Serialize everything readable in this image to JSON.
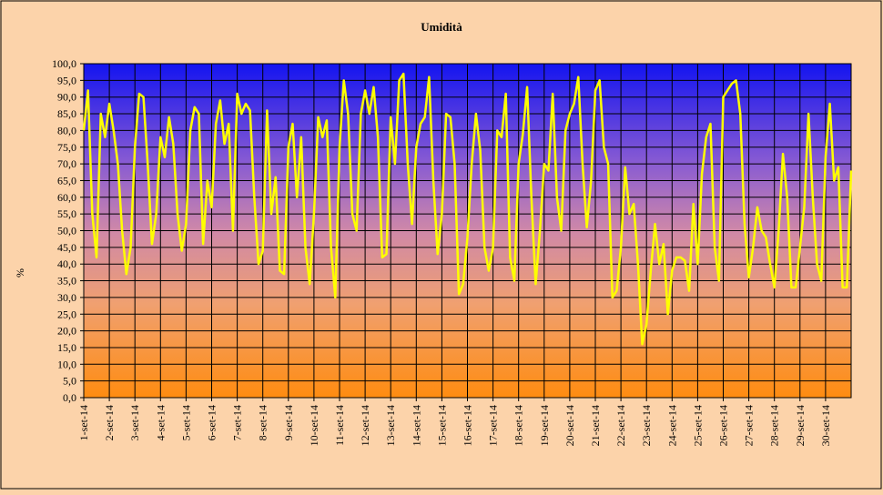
{
  "chart_data": {
    "type": "line",
    "title": "Umidità",
    "y_label": "%",
    "categories": [
      "1-set-14",
      null,
      null,
      null,
      null,
      null,
      "2-set-14",
      null,
      null,
      null,
      null,
      null,
      "3-set-14",
      null,
      null,
      null,
      null,
      null,
      "4-set-14",
      null,
      null,
      null,
      null,
      null,
      "5-set-14",
      null,
      null,
      null,
      null,
      null,
      "6-set-14",
      null,
      null,
      null,
      null,
      null,
      "7-set-14",
      null,
      null,
      null,
      null,
      null,
      "8-set-14",
      null,
      null,
      null,
      null,
      null,
      "9-set-14",
      null,
      null,
      null,
      null,
      null,
      "10-set-14",
      null,
      null,
      null,
      null,
      null,
      "11-set-14",
      null,
      null,
      null,
      null,
      null,
      "12-set-14",
      null,
      null,
      null,
      null,
      null,
      "13-set-14",
      null,
      null,
      null,
      null,
      null,
      "14-set-14",
      null,
      null,
      null,
      null,
      null,
      "15-set-14",
      null,
      null,
      null,
      null,
      null,
      "16-set-14",
      null,
      null,
      null,
      null,
      null,
      "17-set-14",
      null,
      null,
      null,
      null,
      null,
      "18-set-14",
      null,
      null,
      null,
      null,
      null,
      "19-set-14",
      null,
      null,
      null,
      null,
      null,
      "20-set-14",
      null,
      null,
      null,
      null,
      null,
      "21-set-14",
      null,
      null,
      null,
      null,
      null,
      "22-set-14",
      null,
      null,
      null,
      null,
      null,
      "23-set-14",
      null,
      null,
      null,
      null,
      null,
      "24-set-14",
      null,
      null,
      null,
      null,
      null,
      "25-set-14",
      null,
      null,
      null,
      null,
      null,
      "26-set-14",
      null,
      null,
      null,
      null,
      null,
      "27-set-14",
      null,
      null,
      null,
      null,
      null,
      "28-set-14",
      null,
      null,
      null,
      null,
      null,
      "29-set-14",
      null,
      null,
      null,
      null,
      null,
      "30-set-14",
      null,
      null,
      null,
      null,
      null,
      null
    ],
    "series": [
      {
        "name": "Umidità",
        "color": "#ffff00",
        "values": [
          80,
          92,
          55,
          42,
          85,
          78,
          88,
          80,
          70,
          50,
          37,
          45,
          75,
          91,
          90,
          70,
          46,
          55,
          78,
          72,
          84,
          76,
          55,
          44,
          52,
          80,
          87,
          85,
          46,
          65,
          57,
          82,
          89,
          76,
          82,
          50,
          91,
          85,
          88,
          86,
          60,
          40,
          44,
          86,
          55,
          66,
          38,
          37,
          75,
          82,
          60,
          78,
          45,
          34,
          55,
          84,
          78,
          83,
          45,
          30,
          75,
          95,
          85,
          55,
          50,
          85,
          92,
          85,
          93,
          78,
          42,
          43,
          84,
          70,
          95,
          97,
          70,
          52,
          75,
          82,
          84,
          96,
          65,
          43,
          55,
          85,
          84,
          70,
          31,
          34,
          48,
          70,
          85,
          74,
          45,
          38,
          45,
          80,
          78,
          91,
          42,
          35,
          70,
          79,
          93,
          60,
          34,
          50,
          70,
          68,
          91,
          60,
          50,
          80,
          85,
          88,
          96,
          70,
          51,
          65,
          92,
          95,
          75,
          70,
          30,
          32,
          45,
          69,
          55,
          58,
          40,
          16,
          22,
          38,
          52,
          40,
          46,
          25,
          38,
          42,
          42,
          41,
          32,
          58,
          40,
          67,
          78,
          82,
          45,
          35,
          90,
          92,
          94,
          95,
          85,
          52,
          36,
          45,
          57,
          50,
          48,
          40,
          33,
          50,
          73,
          60,
          33,
          33,
          45,
          57,
          85,
          60,
          40,
          35,
          72,
          88,
          65,
          69,
          33,
          33,
          68
        ]
      }
    ],
    "ylim": [
      0,
      100
    ],
    "yticks": [
      {
        "value": 0,
        "label": "0,0"
      },
      {
        "value": 5,
        "label": "5,0"
      },
      {
        "value": 10,
        "label": "10,0"
      },
      {
        "value": 15,
        "label": "15,0"
      },
      {
        "value": 20,
        "label": "20,0"
      },
      {
        "value": 25,
        "label": "25,0"
      },
      {
        "value": 30,
        "label": "30,0"
      },
      {
        "value": 35,
        "label": "35,0"
      },
      {
        "value": 40,
        "label": "40,0"
      },
      {
        "value": 45,
        "label": "45,0"
      },
      {
        "value": 50,
        "label": "50,0"
      },
      {
        "value": 55,
        "label": "55,0"
      },
      {
        "value": 60,
        "label": "60,0"
      },
      {
        "value": 65,
        "label": "65,0"
      },
      {
        "value": 70,
        "label": "70,0"
      },
      {
        "value": 75,
        "label": "75,0"
      },
      {
        "value": 80,
        "label": "80,0"
      },
      {
        "value": 85,
        "label": "85,0"
      },
      {
        "value": 90,
        "label": "90,0"
      },
      {
        "value": 95,
        "label": "95,0"
      },
      {
        "value": 100,
        "label": "100,0"
      }
    ],
    "grid": true
  }
}
